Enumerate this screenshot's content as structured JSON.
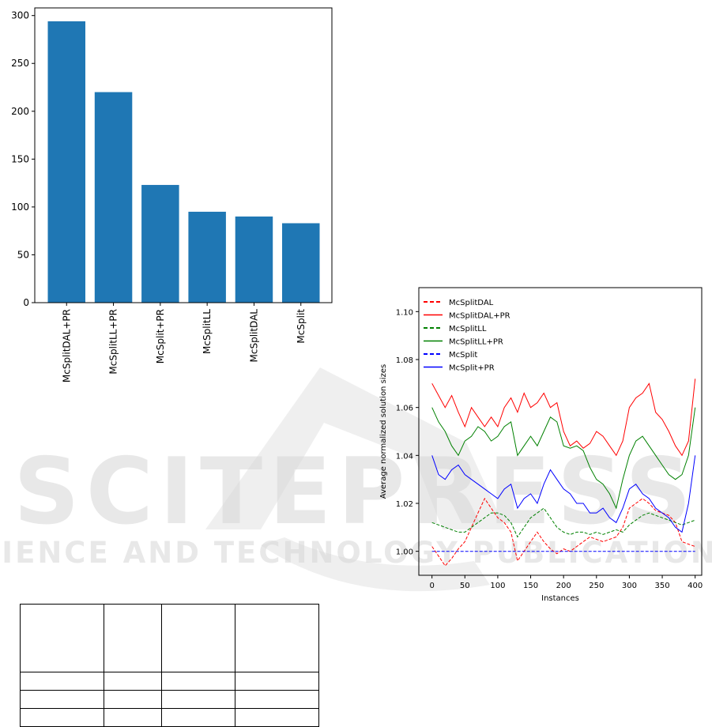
{
  "chart_data": [
    {
      "type": "bar",
      "categories": [
        "McSplitDAL+PR",
        "McSplitLL+PR",
        "McSplit+PR",
        "McSplitLL",
        "McSplitDAL",
        "McSplit"
      ],
      "values": [
        294,
        220,
        123,
        95,
        90,
        83
      ],
      "ylim": [
        0,
        308
      ],
      "yticks": [
        0,
        50,
        100,
        150,
        200,
        250,
        300
      ],
      "color": "#1f77b4",
      "grid": false
    },
    {
      "type": "line",
      "xlabel": "Instances",
      "ylabel": "Average normalized solution sizes",
      "xlim": [
        -20,
        410
      ],
      "ylim": [
        0.99,
        1.11
      ],
      "xticks": [
        0,
        50,
        100,
        150,
        200,
        250,
        300,
        350,
        400
      ],
      "yticks": [
        1.0,
        1.02,
        1.04,
        1.06,
        1.08,
        1.1
      ],
      "legend_position": "top-left",
      "grid": false,
      "series": [
        {
          "name": "McSplitDAL",
          "color": "#ff0000",
          "style": "dashed",
          "x": [
            0,
            10,
            20,
            30,
            40,
            50,
            60,
            70,
            80,
            90,
            100,
            110,
            120,
            130,
            140,
            150,
            160,
            170,
            180,
            190,
            200,
            210,
            220,
            230,
            240,
            250,
            260,
            270,
            280,
            290,
            300,
            310,
            320,
            330,
            340,
            350,
            360,
            370,
            380,
            390,
            400
          ],
          "y": [
            1.002,
            0.998,
            0.994,
            0.997,
            1.001,
            1.004,
            1.01,
            1.016,
            1.022,
            1.018,
            1.014,
            1.012,
            1.008,
            0.996,
            1.0,
            1.004,
            1.008,
            1.004,
            1.001,
            0.999,
            1.001,
            1.0,
            1.002,
            1.004,
            1.006,
            1.005,
            1.004,
            1.005,
            1.006,
            1.01,
            1.018,
            1.02,
            1.022,
            1.02,
            1.017,
            1.016,
            1.015,
            1.012,
            1.004,
            1.003,
            1.002
          ]
        },
        {
          "name": "McSplitDAL+PR",
          "color": "#ff0000",
          "style": "solid",
          "x": [
            0,
            10,
            20,
            30,
            40,
            50,
            60,
            70,
            80,
            90,
            100,
            110,
            120,
            130,
            140,
            150,
            160,
            170,
            180,
            190,
            200,
            210,
            220,
            230,
            240,
            250,
            260,
            270,
            280,
            290,
            300,
            310,
            320,
            330,
            340,
            350,
            360,
            370,
            380,
            390,
            400
          ],
          "y": [
            1.07,
            1.065,
            1.06,
            1.065,
            1.058,
            1.052,
            1.06,
            1.056,
            1.052,
            1.056,
            1.052,
            1.06,
            1.064,
            1.058,
            1.066,
            1.06,
            1.062,
            1.066,
            1.06,
            1.062,
            1.05,
            1.044,
            1.046,
            1.043,
            1.045,
            1.05,
            1.048,
            1.044,
            1.04,
            1.046,
            1.06,
            1.064,
            1.066,
            1.07,
            1.058,
            1.055,
            1.05,
            1.044,
            1.04,
            1.046,
            1.072
          ]
        },
        {
          "name": "McSplitLL",
          "color": "#008000",
          "style": "dashed",
          "x": [
            0,
            10,
            20,
            30,
            40,
            50,
            60,
            70,
            80,
            90,
            100,
            110,
            120,
            130,
            140,
            150,
            160,
            170,
            180,
            190,
            200,
            210,
            220,
            230,
            240,
            250,
            260,
            270,
            280,
            290,
            300,
            310,
            320,
            330,
            340,
            350,
            360,
            370,
            380,
            390,
            400
          ],
          "y": [
            1.012,
            1.011,
            1.01,
            1.009,
            1.008,
            1.008,
            1.01,
            1.012,
            1.014,
            1.016,
            1.016,
            1.015,
            1.012,
            1.006,
            1.01,
            1.014,
            1.016,
            1.018,
            1.014,
            1.01,
            1.008,
            1.007,
            1.008,
            1.008,
            1.007,
            1.008,
            1.007,
            1.008,
            1.009,
            1.008,
            1.011,
            1.013,
            1.015,
            1.016,
            1.015,
            1.014,
            1.013,
            1.012,
            1.011,
            1.012,
            1.013
          ]
        },
        {
          "name": "McSplitLL+PR",
          "color": "#008000",
          "style": "solid",
          "x": [
            0,
            10,
            20,
            30,
            40,
            50,
            60,
            70,
            80,
            90,
            100,
            110,
            120,
            130,
            140,
            150,
            160,
            170,
            180,
            190,
            200,
            210,
            220,
            230,
            240,
            250,
            260,
            270,
            280,
            290,
            300,
            310,
            320,
            330,
            340,
            350,
            360,
            370,
            380,
            390,
            400
          ],
          "y": [
            1.06,
            1.054,
            1.05,
            1.044,
            1.04,
            1.046,
            1.048,
            1.052,
            1.05,
            1.046,
            1.048,
            1.052,
            1.054,
            1.04,
            1.044,
            1.048,
            1.044,
            1.05,
            1.056,
            1.054,
            1.044,
            1.043,
            1.044,
            1.042,
            1.035,
            1.03,
            1.028,
            1.024,
            1.018,
            1.03,
            1.04,
            1.046,
            1.048,
            1.044,
            1.04,
            1.036,
            1.032,
            1.03,
            1.032,
            1.04,
            1.06
          ]
        },
        {
          "name": "McSplit",
          "color": "#0000ff",
          "style": "dashed",
          "x": [
            0,
            400
          ],
          "y": [
            1.0,
            1.0
          ]
        },
        {
          "name": "McSplit+PR",
          "color": "#0000ff",
          "style": "solid",
          "x": [
            0,
            10,
            20,
            30,
            40,
            50,
            60,
            70,
            80,
            90,
            100,
            110,
            120,
            130,
            140,
            150,
            160,
            170,
            180,
            190,
            200,
            210,
            220,
            230,
            240,
            250,
            260,
            270,
            280,
            290,
            300,
            310,
            320,
            330,
            340,
            350,
            360,
            370,
            380,
            390,
            400
          ],
          "y": [
            1.04,
            1.032,
            1.03,
            1.034,
            1.036,
            1.032,
            1.03,
            1.028,
            1.026,
            1.024,
            1.022,
            1.026,
            1.028,
            1.018,
            1.022,
            1.024,
            1.02,
            1.028,
            1.034,
            1.03,
            1.026,
            1.024,
            1.02,
            1.02,
            1.016,
            1.016,
            1.018,
            1.014,
            1.012,
            1.018,
            1.026,
            1.028,
            1.024,
            1.022,
            1.018,
            1.016,
            1.014,
            1.01,
            1.008,
            1.02,
            1.04
          ]
        }
      ]
    }
  ],
  "watermark": {
    "primary": "SCITEPRESS",
    "secondary": "SCIENCE AND TECHNOLOGY PUBLICATIONS"
  },
  "table": {
    "rows": [
      [
        "",
        "",
        "",
        ""
      ],
      [
        "",
        "",
        "",
        ""
      ],
      [
        "",
        "",
        "",
        ""
      ],
      [
        "",
        "",
        "",
        ""
      ]
    ]
  }
}
